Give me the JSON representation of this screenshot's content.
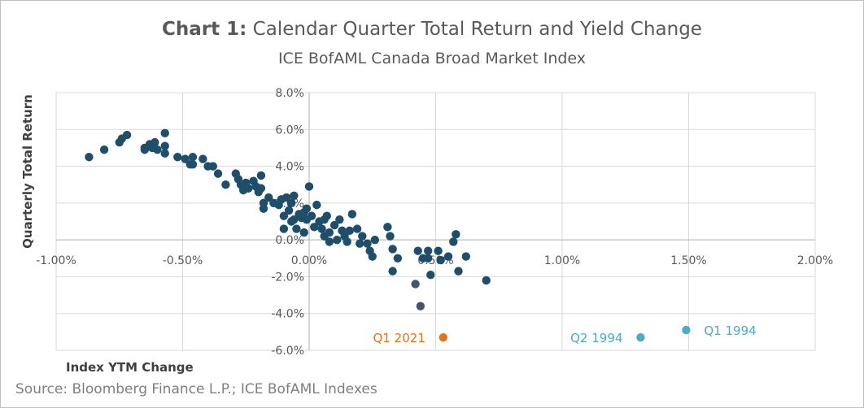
{
  "title_bold": "Chart 1:",
  "title_rest": "Calendar Quarter Total Return and Yield Change",
  "subtitle": "ICE BofAML Canada Broad Market Index",
  "source": "Source: Bloomberg Finance L.P.; ICE BofAML Indexes",
  "colors": {
    "points": "#1f4e6a",
    "highlight_dark": "#44546a",
    "q1_2021": "#e2731b",
    "q1994": "#4bacc6",
    "grid": "#d9d9d9",
    "axis": "#bfbfbf"
  },
  "chart_data": {
    "type": "scatter",
    "xlabel": "Index YTM Change",
    "ylabel": "Quarterly Total Return",
    "xlim": [
      -1.0,
      2.0
    ],
    "ylim": [
      -6.0,
      8.0
    ],
    "grid": true,
    "x_ticks": [
      "-1.00%",
      "-0.50%",
      "0.00%",
      "0.50%",
      "1.00%",
      "1.50%",
      "2.00%"
    ],
    "y_ticks": [
      "8.0%",
      "6.0%",
      "4.0%",
      "2.0%",
      "0.0%",
      "-2.0%",
      "-4.0%",
      "-6.0%"
    ],
    "points": [
      [
        -0.87,
        4.5
      ],
      [
        -0.81,
        4.9
      ],
      [
        -0.75,
        5.3
      ],
      [
        -0.74,
        5.5
      ],
      [
        -0.72,
        5.7
      ],
      [
        -0.65,
        5.0
      ],
      [
        -0.65,
        4.9
      ],
      [
        -0.63,
        5.2
      ],
      [
        -0.62,
        5.0
      ],
      [
        -0.61,
        5.3
      ],
      [
        -0.6,
        4.9
      ],
      [
        -0.57,
        5.8
      ],
      [
        -0.57,
        5.1
      ],
      [
        -0.57,
        4.7
      ],
      [
        -0.52,
        4.5
      ],
      [
        -0.49,
        4.4
      ],
      [
        -0.47,
        4.1
      ],
      [
        -0.46,
        4.5
      ],
      [
        -0.46,
        4.1
      ],
      [
        -0.42,
        4.4
      ],
      [
        -0.4,
        4.0
      ],
      [
        -0.38,
        4.0
      ],
      [
        -0.36,
        3.6
      ],
      [
        -0.33,
        3.0
      ],
      [
        -0.29,
        3.6
      ],
      [
        -0.28,
        3.3
      ],
      [
        -0.27,
        3.0
      ],
      [
        -0.26,
        2.7
      ],
      [
        -0.25,
        3.1
      ],
      [
        -0.24,
        2.8
      ],
      [
        -0.22,
        3.2
      ],
      [
        -0.21,
        2.9
      ],
      [
        -0.2,
        2.6
      ],
      [
        -0.19,
        3.5
      ],
      [
        -0.19,
        2.8
      ],
      [
        -0.18,
        2.0
      ],
      [
        -0.18,
        1.7
      ],
      [
        -0.16,
        2.3
      ],
      [
        -0.14,
        2.0
      ],
      [
        -0.12,
        1.9
      ],
      [
        -0.11,
        2.2
      ],
      [
        -0.1,
        1.3
      ],
      [
        -0.1,
        0.6
      ],
      [
        -0.09,
        2.3
      ],
      [
        -0.08,
        1.6
      ],
      [
        -0.07,
        2.0
      ],
      [
        -0.07,
        1.0
      ],
      [
        -0.06,
        2.4
      ],
      [
        -0.06,
        1.1
      ],
      [
        -0.05,
        0.6
      ],
      [
        -0.04,
        1.4
      ],
      [
        -0.03,
        1.2
      ],
      [
        -0.02,
        1.5
      ],
      [
        -0.02,
        0.4
      ],
      [
        -0.01,
        1.7
      ],
      [
        -0.01,
        1.1
      ],
      [
        0.0,
        2.9
      ],
      [
        0.01,
        1.3
      ],
      [
        0.02,
        0.7
      ],
      [
        0.03,
        1.9
      ],
      [
        0.04,
        1.0
      ],
      [
        0.05,
        0.6
      ],
      [
        0.06,
        1.1
      ],
      [
        0.06,
        0.2
      ],
      [
        0.07,
        1.3
      ],
      [
        0.08,
        0.4
      ],
      [
        0.08,
        -0.1
      ],
      [
        0.1,
        0.8
      ],
      [
        0.11,
        0.0
      ],
      [
        0.12,
        1.1
      ],
      [
        0.13,
        0.5
      ],
      [
        0.14,
        0.2
      ],
      [
        0.15,
        -0.1
      ],
      [
        0.16,
        0.5
      ],
      [
        0.17,
        1.4
      ],
      [
        0.19,
        0.6
      ],
      [
        0.2,
        -0.2
      ],
      [
        0.21,
        0.2
      ],
      [
        0.23,
        -0.2
      ],
      [
        0.24,
        -0.6
      ],
      [
        0.25,
        -0.9
      ],
      [
        0.26,
        0.0
      ],
      [
        0.31,
        0.7
      ],
      [
        0.32,
        0.2
      ],
      [
        0.33,
        -0.5
      ],
      [
        0.33,
        -1.7
      ],
      [
        0.35,
        -1.0
      ],
      [
        0.43,
        -0.6
      ],
      [
        0.45,
        -1.0
      ],
      [
        0.47,
        -1.0
      ],
      [
        0.47,
        -0.6
      ],
      [
        0.48,
        -1.9
      ],
      [
        0.51,
        -0.6
      ],
      [
        0.52,
        -1.1
      ],
      [
        0.55,
        -0.9
      ],
      [
        0.57,
        -0.1
      ],
      [
        0.58,
        0.3
      ],
      [
        0.59,
        -1.7
      ],
      [
        0.62,
        -0.9
      ],
      [
        0.7,
        -2.2
      ]
    ],
    "highlight_points": [
      [
        0.42,
        -2.4
      ],
      [
        0.44,
        -3.6
      ]
    ],
    "annotated_points": [
      {
        "label": "Q1 2021",
        "x": 0.53,
        "y": -5.3,
        "color": "#e2731b"
      },
      {
        "label": "Q2 1994",
        "x": 1.31,
        "y": -5.3,
        "color": "#4bacc6"
      },
      {
        "label": "Q1 1994",
        "x": 1.49,
        "y": -4.9,
        "color": "#4bacc6"
      }
    ]
  }
}
